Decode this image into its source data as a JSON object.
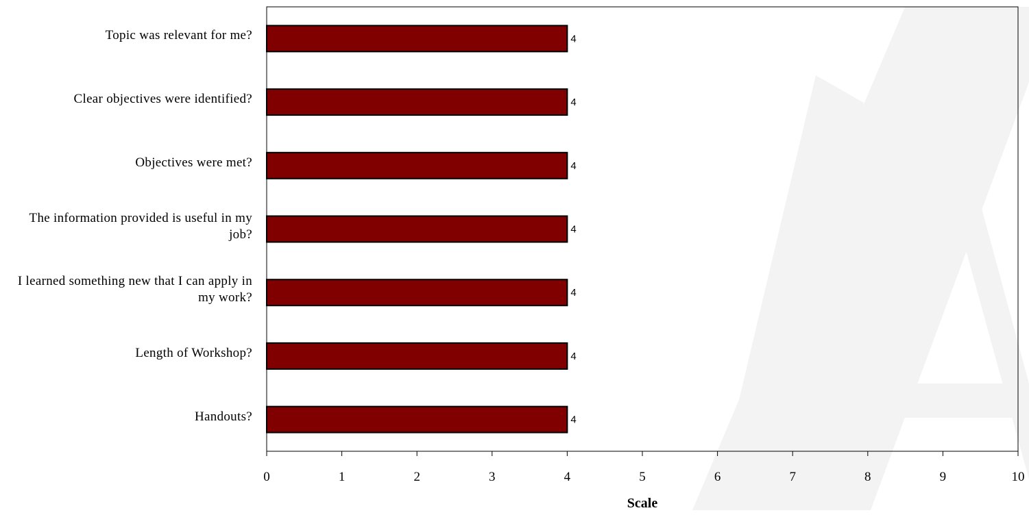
{
  "chart_data": {
    "type": "bar",
    "orientation": "horizontal",
    "categories": [
      "Topic was relevant for me?",
      "Clear objectives were identified?",
      "Objectives were met?",
      "The information provided is useful in my job?",
      "I learned something new that I can apply in my work?",
      "Length of Workshop?",
      "Handouts?"
    ],
    "values": [
      4,
      4,
      4,
      4,
      4,
      4,
      4
    ],
    "data_labels": [
      "4",
      "4",
      "4",
      "4",
      "4",
      "4",
      "4"
    ],
    "title": "",
    "xlabel": "Scale",
    "ylabel": "",
    "xlim": [
      0,
      10
    ],
    "x_ticks": [
      "0",
      "1",
      "2",
      "3",
      "4",
      "5",
      "6",
      "7",
      "8",
      "9",
      "10"
    ],
    "grid": false,
    "legend": "none",
    "bar_color": "#800000",
    "bar_edge_color": "#000000",
    "watermark_color": "#f3f3f3"
  }
}
